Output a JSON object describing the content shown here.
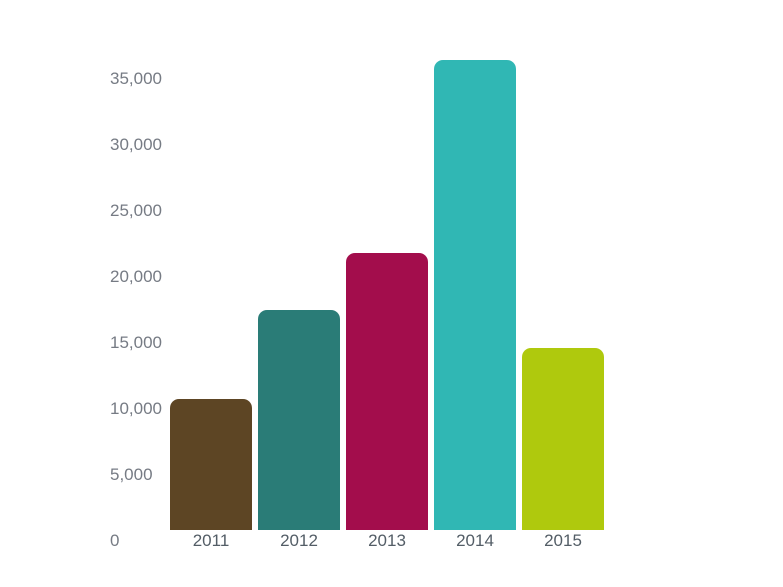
{
  "chart_data": {
    "type": "bar",
    "title": "",
    "xlabel": "",
    "ylabel": "",
    "categories": [
      "2011",
      "2012",
      "2013",
      "2014",
      "2015"
    ],
    "values": [
      9900,
      16700,
      21000,
      35600,
      13800
    ],
    "bar_colors": [
      "#5d4524",
      "#2a7c77",
      "#a30d4c",
      "#30b7b4",
      "#afc90d"
    ],
    "y_ticks": [
      35000,
      30000,
      25000,
      20000,
      15000,
      10000,
      5000,
      0
    ],
    "y_tick_labels": [
      "35,000",
      "30,000",
      "25,000",
      "20,000",
      "15,000",
      "10,000",
      "5,000",
      "0"
    ],
    "ylim": [
      0,
      36600
    ],
    "grid": false,
    "legend": "none",
    "background_color": "#ffffff",
    "y_label_color": "#767b84",
    "x_label_color": "#535d66"
  }
}
